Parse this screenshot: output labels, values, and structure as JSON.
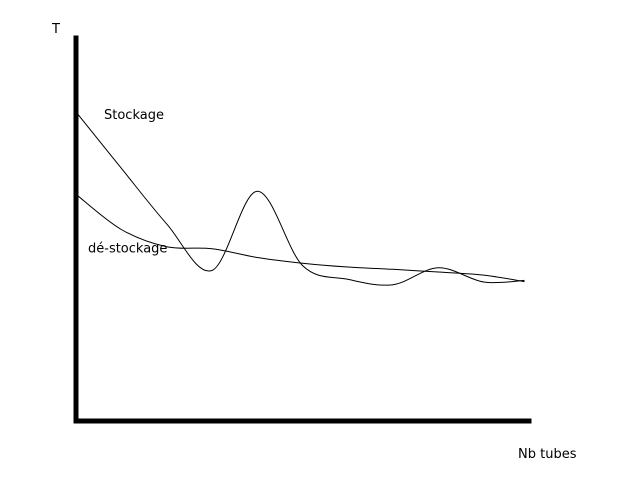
{
  "chart_data": {
    "type": "line",
    "ylabel": "T",
    "xlabel": "Nb tubes",
    "grid": false,
    "xlim": [
      0,
      100
    ],
    "ylim": [
      0,
      100
    ],
    "series": [
      {
        "name": "Stockage",
        "x": [
          0,
          10,
          20,
          30,
          40,
          50,
          60,
          70,
          80,
          90,
          99
        ],
        "y": [
          80.7,
          66.0,
          51.5,
          39.3,
          60.0,
          40.6,
          37.0,
          35.6,
          40.0,
          36.3,
          36.7
        ]
      },
      {
        "name": "dé-stockage",
        "x": [
          0,
          10,
          20,
          30,
          40,
          50,
          60,
          70,
          80,
          90,
          99
        ],
        "y": [
          59.2,
          50.0,
          45.5,
          45.0,
          42.7,
          41.2,
          40.2,
          39.6,
          38.9,
          38.1,
          36.4
        ]
      }
    ]
  }
}
